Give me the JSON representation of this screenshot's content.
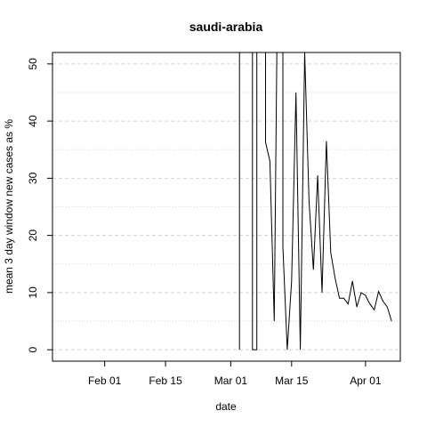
{
  "chart_data": {
    "type": "line",
    "title": "saudi-arabia",
    "xlabel": "date",
    "ylabel": "mean  3  day window new cases as %",
    "x_axis": {
      "type": "date",
      "range": [
        "2020-01-20",
        "2020-04-09"
      ],
      "ticks": [
        {
          "date": "2020-02-01",
          "label": "Feb 01"
        },
        {
          "date": "2020-02-15",
          "label": "Feb 15"
        },
        {
          "date": "2020-03-01",
          "label": "Mar 01"
        },
        {
          "date": "2020-03-15",
          "label": "Mar 15"
        },
        {
          "date": "2020-04-01",
          "label": "Apr 01"
        }
      ]
    },
    "y_axis": {
      "range": [
        -2,
        52
      ],
      "ticks": [
        0,
        10,
        20,
        30,
        40,
        50
      ],
      "grid": "dashed horizontal lines at major and minor ticks (every 5)"
    },
    "grid": true,
    "legend": "none",
    "line_color": "#000000",
    "series": [
      {
        "points": [
          {
            "date": "2020-03-03",
            "value": 0
          },
          {
            "date": "2020-03-03",
            "value": 52
          },
          {
            "date": "2020-03-06",
            "value": 52
          },
          {
            "date": "2020-03-06",
            "value": 0
          },
          {
            "date": "2020-03-07",
            "value": 0
          },
          {
            "date": "2020-03-07",
            "value": 52
          },
          {
            "date": "2020-03-09",
            "value": 52
          },
          {
            "date": "2020-03-09",
            "value": 36.3
          },
          {
            "date": "2020-03-10",
            "value": 33
          },
          {
            "date": "2020-03-11",
            "value": 5
          },
          {
            "date": "2020-03-11.6",
            "value": 52
          },
          {
            "date": "2020-03-13",
            "value": 52
          },
          {
            "date": "2020-03-13",
            "value": 18
          },
          {
            "date": "2020-03-14",
            "value": 0
          },
          {
            "date": "2020-03-15",
            "value": 12
          },
          {
            "date": "2020-03-16",
            "value": 45
          },
          {
            "date": "2020-03-17",
            "value": 0
          },
          {
            "date": "2020-03-18",
            "value": 52
          },
          {
            "date": "2020-03-19",
            "value": 26
          },
          {
            "date": "2020-03-20",
            "value": 14
          },
          {
            "date": "2020-03-21",
            "value": 30.5
          },
          {
            "date": "2020-03-22",
            "value": 10
          },
          {
            "date": "2020-03-23",
            "value": 36.5
          },
          {
            "date": "2020-03-24",
            "value": 17
          },
          {
            "date": "2020-03-25",
            "value": 12.5
          },
          {
            "date": "2020-03-26",
            "value": 9
          },
          {
            "date": "2020-03-27",
            "value": 9
          },
          {
            "date": "2020-03-28",
            "value": 8
          },
          {
            "date": "2020-03-29",
            "value": 12
          },
          {
            "date": "2020-03-30",
            "value": 7.5
          },
          {
            "date": "2020-03-31",
            "value": 10
          },
          {
            "date": "2020-04-01",
            "value": 9.5
          },
          {
            "date": "2020-04-02",
            "value": 8
          },
          {
            "date": "2020-04-03",
            "value": 7
          },
          {
            "date": "2020-04-04",
            "value": 10.2
          },
          {
            "date": "2020-04-05",
            "value": 8.5
          },
          {
            "date": "2020-04-06",
            "value": 7.5
          },
          {
            "date": "2020-04-07",
            "value": 5
          }
        ]
      }
    ]
  }
}
